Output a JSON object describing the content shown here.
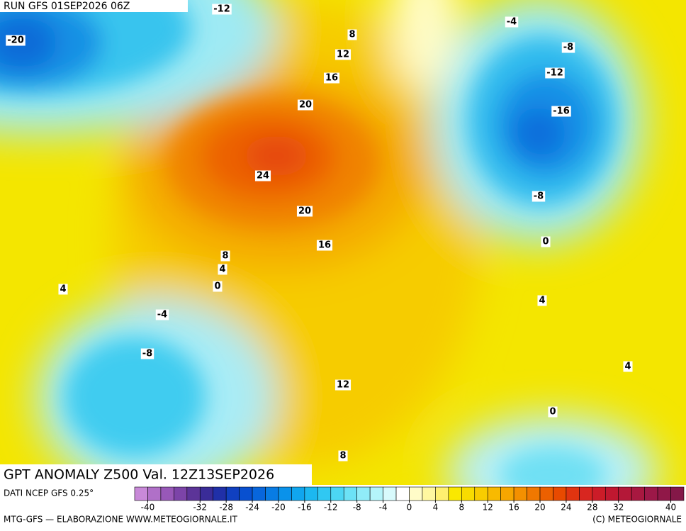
{
  "header": {
    "run": "RUN GFS 01SEP2026 06Z"
  },
  "map": {
    "title": "GPT ANOMALY Z500 Val. 12Z13SEP2026",
    "contour_labels": [
      "-12",
      "-20",
      "8",
      "12",
      "16",
      "20",
      "24",
      "20",
      "16",
      "8",
      "4",
      "4",
      "0",
      "-4",
      "-8",
      "12",
      "8",
      "-4",
      "-8",
      "-12",
      "-16",
      "-8",
      "0",
      "4",
      "4",
      "0"
    ]
  },
  "colorbar": {
    "source": "DATI NCEP GFS 0.25°",
    "range": [
      -42,
      42
    ],
    "ticks": [
      -40,
      -32,
      -28,
      -24,
      -20,
      -16,
      -12,
      -8,
      -4,
      0,
      4,
      8,
      12,
      16,
      20,
      24,
      28,
      32,
      40
    ],
    "colors": [
      "#c889d8",
      "#b070c8",
      "#9858b8",
      "#7c44a8",
      "#5c3498",
      "#3a2c98",
      "#2030a8",
      "#1040c0",
      "#0850d0",
      "#0866dc",
      "#087ce4",
      "#0a92ea",
      "#10a6ee",
      "#1cb8f0",
      "#30c8f2",
      "#4cd6f4",
      "#6ce2f6",
      "#90ecf8",
      "#b4f4fa",
      "#d8fafc",
      "#ffffff",
      "#fffcc8",
      "#fff7a0",
      "#fff070",
      "#fae800",
      "#f8dc00",
      "#f8cc00",
      "#f8ba00",
      "#f6a600",
      "#f49000",
      "#f07800",
      "#ec6000",
      "#e84a00",
      "#e03410",
      "#d82620",
      "#cc1c28",
      "#c01830",
      "#b41838",
      "#a81840",
      "#9c1848",
      "#901848",
      "#841848"
    ]
  },
  "footer": {
    "left": "MTG-GFS — ELABORAZIONE WWW.METEOGIORNALE.IT",
    "right": "(C) METEOGIORNALE"
  }
}
